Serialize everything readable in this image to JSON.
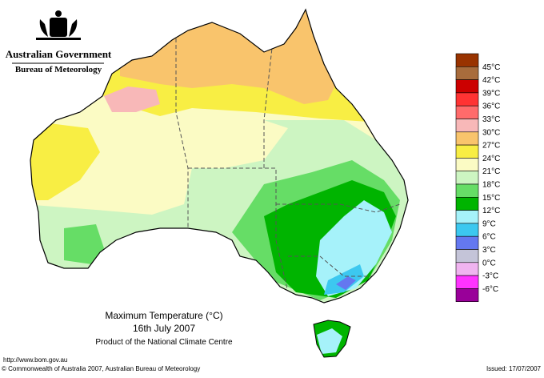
{
  "header": {
    "title": "Australian Government",
    "subtitle": "Bureau of Meteorology"
  },
  "legend": {
    "colors": [
      "#993300",
      "#a86c3c",
      "#cc0000",
      "#ff3333",
      "#ff6b6b",
      "#f8b8b8",
      "#f9c46c",
      "#f8ee44",
      "#fbfbc4",
      "#cdf5c2",
      "#66dd66",
      "#00b400",
      "#a6f2fa",
      "#3cc8f0",
      "#6478f0",
      "#c4c4d8",
      "#f0b4f0",
      "#ff33ff",
      "#990099"
    ],
    "labels": [
      "45°C",
      "42°C",
      "39°C",
      "36°C",
      "33°C",
      "30°C",
      "27°C",
      "24°C",
      "21°C",
      "18°C",
      "15°C",
      "12°C",
      "9°C",
      "6°C",
      "3°C",
      "0°C",
      "-3°C",
      "-6°C"
    ]
  },
  "caption": {
    "title": "Maximum Temperature (°C)",
    "date": "16th July 2007",
    "note": "Product of the National Climate Centre"
  },
  "footer": {
    "url": "http://www.bom.gov.au",
    "copyright": "© Commonwealth of Australia 2007, Australian Bureau of Meteorology",
    "issued": "Issued: 17/07/2007"
  }
}
